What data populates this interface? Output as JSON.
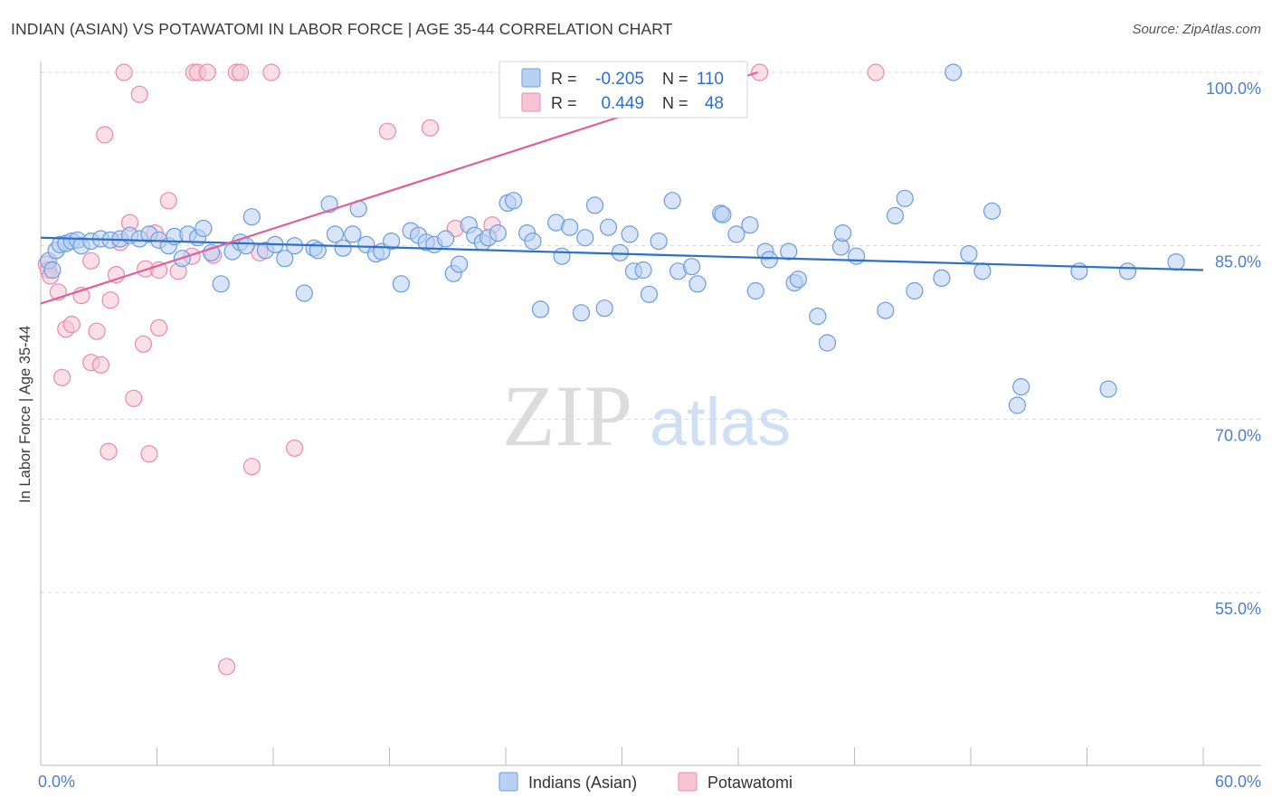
{
  "header": {
    "title": "INDIAN (ASIAN) VS POTAWATOMI IN LABOR FORCE | AGE 35-44 CORRELATION CHART",
    "source": "Source: ZipAtlas.com"
  },
  "watermark": {
    "zip": "ZIP",
    "atlas": "atlas"
  },
  "legend_stats": {
    "row1": {
      "r_label": "R =",
      "r_value": "-0.205",
      "n_label": "N =",
      "n_value": "110"
    },
    "row2": {
      "r_label": "R =",
      "r_value": "0.449",
      "n_label": "N =",
      "n_value": "48"
    }
  },
  "colors": {
    "blue_fill": "#b8d0f2",
    "blue_stroke": "#6a9ce0",
    "blue_line": "#2c6fcc",
    "pink_fill": "#f7c4d4",
    "pink_stroke": "#e98aaa",
    "pink_line": "#e0609a",
    "tick_text": "#4a7fd0",
    "grid": "#d8d8d8"
  },
  "chart_data": {
    "type": "scatter",
    "title": "INDIAN (ASIAN) VS POTAWATOMI IN LABOR FORCE | AGE 35-44 CORRELATION CHART",
    "xlabel": "",
    "ylabel": "In Labor Force | Age 35-44",
    "xlim": [
      0,
      60
    ],
    "ylim": [
      40,
      101.5
    ],
    "x_tick_labels": [
      "0.0%",
      "60.0%"
    ],
    "y_ticks": [
      55,
      70,
      85,
      100
    ],
    "y_tick_labels": [
      "55.0%",
      "70.0%",
      "85.0%",
      "100.0%"
    ],
    "legend_position": "bottom-center",
    "series": [
      {
        "name": "Indians (Asian)",
        "R": -0.205,
        "N": 110,
        "trend": [
          [
            0,
            85.7
          ],
          [
            60,
            82.9
          ]
        ],
        "points": [
          [
            0.4,
            83.7
          ],
          [
            0.6,
            82.9
          ],
          [
            0.8,
            84.6
          ],
          [
            1.0,
            85.1
          ],
          [
            1.3,
            85.2
          ],
          [
            1.6,
            85.4
          ],
          [
            1.9,
            85.5
          ],
          [
            2.1,
            85.0
          ],
          [
            2.6,
            85.4
          ],
          [
            3.1,
            85.6
          ],
          [
            3.6,
            85.5
          ],
          [
            4.1,
            85.6
          ],
          [
            4.6,
            85.9
          ],
          [
            5.1,
            85.6
          ],
          [
            5.6,
            86.0
          ],
          [
            6.1,
            85.5
          ],
          [
            6.6,
            85.0
          ],
          [
            6.9,
            85.8
          ],
          [
            7.3,
            83.9
          ],
          [
            7.6,
            86.0
          ],
          [
            8.1,
            85.7
          ],
          [
            8.4,
            86.5
          ],
          [
            8.8,
            84.4
          ],
          [
            9.3,
            81.7
          ],
          [
            9.9,
            84.5
          ],
          [
            10.3,
            85.3
          ],
          [
            10.6,
            85.0
          ],
          [
            10.9,
            87.5
          ],
          [
            11.6,
            84.6
          ],
          [
            12.1,
            85.1
          ],
          [
            12.6,
            83.9
          ],
          [
            13.1,
            85.0
          ],
          [
            13.6,
            80.9
          ],
          [
            14.1,
            84.8
          ],
          [
            14.3,
            84.6
          ],
          [
            14.9,
            88.6
          ],
          [
            15.2,
            86.0
          ],
          [
            15.6,
            84.8
          ],
          [
            16.1,
            86.0
          ],
          [
            16.4,
            88.2
          ],
          [
            16.8,
            85.1
          ],
          [
            17.3,
            84.3
          ],
          [
            17.6,
            84.5
          ],
          [
            18.1,
            85.4
          ],
          [
            18.6,
            81.7
          ],
          [
            19.1,
            86.3
          ],
          [
            19.5,
            85.9
          ],
          [
            19.9,
            85.3
          ],
          [
            20.3,
            85.1
          ],
          [
            20.9,
            85.6
          ],
          [
            21.3,
            82.6
          ],
          [
            21.6,
            83.4
          ],
          [
            22.1,
            86.8
          ],
          [
            22.4,
            85.9
          ],
          [
            22.8,
            85.3
          ],
          [
            23.1,
            85.7
          ],
          [
            23.6,
            86.1
          ],
          [
            24.1,
            88.7
          ],
          [
            24.4,
            88.9
          ],
          [
            25.1,
            86.1
          ],
          [
            25.4,
            85.4
          ],
          [
            25.8,
            79.5
          ],
          [
            26.6,
            87.0
          ],
          [
            26.9,
            84.1
          ],
          [
            27.3,
            86.6
          ],
          [
            27.9,
            79.2
          ],
          [
            28.1,
            85.7
          ],
          [
            28.6,
            88.5
          ],
          [
            29.1,
            79.6
          ],
          [
            29.3,
            86.6
          ],
          [
            29.9,
            84.4
          ],
          [
            30.4,
            86.0
          ],
          [
            30.6,
            82.8
          ],
          [
            31.1,
            82.9
          ],
          [
            31.4,
            80.8
          ],
          [
            31.9,
            85.4
          ],
          [
            32.6,
            88.9
          ],
          [
            32.9,
            82.8
          ],
          [
            33.6,
            83.2
          ],
          [
            33.9,
            81.7
          ],
          [
            35.1,
            87.8
          ],
          [
            35.2,
            87.7
          ],
          [
            35.9,
            86.0
          ],
          [
            36.6,
            86.8
          ],
          [
            36.9,
            81.1
          ],
          [
            37.4,
            84.5
          ],
          [
            37.6,
            83.8
          ],
          [
            38.6,
            84.5
          ],
          [
            38.9,
            81.8
          ],
          [
            39.1,
            82.1
          ],
          [
            40.1,
            78.9
          ],
          [
            40.6,
            76.6
          ],
          [
            41.3,
            84.9
          ],
          [
            41.4,
            86.1
          ],
          [
            42.1,
            84.1
          ],
          [
            43.6,
            79.4
          ],
          [
            44.1,
            87.6
          ],
          [
            44.6,
            89.1
          ],
          [
            45.1,
            81.1
          ],
          [
            46.5,
            82.2
          ],
          [
            47.1,
            100.0
          ],
          [
            47.9,
            84.3
          ],
          [
            48.6,
            82.8
          ],
          [
            49.1,
            88.0
          ],
          [
            50.4,
            71.2
          ],
          [
            50.6,
            72.8
          ],
          [
            53.6,
            82.8
          ],
          [
            55.1,
            72.6
          ],
          [
            56.1,
            82.8
          ],
          [
            58.6,
            83.6
          ]
        ]
      },
      {
        "name": "Potawatomi",
        "R": 0.449,
        "N": 48,
        "trend": [
          [
            0,
            80.0
          ],
          [
            37,
            100.0
          ]
        ],
        "points": [
          [
            0.3,
            83.4
          ],
          [
            0.4,
            82.9
          ],
          [
            0.5,
            82.4
          ],
          [
            0.9,
            81.0
          ],
          [
            1.1,
            73.6
          ],
          [
            1.3,
            77.8
          ],
          [
            1.6,
            78.2
          ],
          [
            2.1,
            80.7
          ],
          [
            2.6,
            83.7
          ],
          [
            2.6,
            74.9
          ],
          [
            2.9,
            77.6
          ],
          [
            3.1,
            74.7
          ],
          [
            3.3,
            94.6
          ],
          [
            3.5,
            67.2
          ],
          [
            3.6,
            80.3
          ],
          [
            3.9,
            82.5
          ],
          [
            4.1,
            85.3
          ],
          [
            4.3,
            100.0
          ],
          [
            4.6,
            87.0
          ],
          [
            4.8,
            71.8
          ],
          [
            5.1,
            98.1
          ],
          [
            5.3,
            76.5
          ],
          [
            5.4,
            83.0
          ],
          [
            5.6,
            67.0
          ],
          [
            5.9,
            86.1
          ],
          [
            6.1,
            82.9
          ],
          [
            6.1,
            77.9
          ],
          [
            6.6,
            88.9
          ],
          [
            7.1,
            82.8
          ],
          [
            7.8,
            84.1
          ],
          [
            7.9,
            100.0
          ],
          [
            8.1,
            100.0
          ],
          [
            8.6,
            100.0
          ],
          [
            8.9,
            84.2
          ],
          [
            9.6,
            48.6
          ],
          [
            10.1,
            100.0
          ],
          [
            10.3,
            100.0
          ],
          [
            10.9,
            65.9
          ],
          [
            11.3,
            84.4
          ],
          [
            11.9,
            100.0
          ],
          [
            13.1,
            67.5
          ],
          [
            17.9,
            94.9
          ],
          [
            20.1,
            95.2
          ],
          [
            21.4,
            86.5
          ],
          [
            23.3,
            86.8
          ],
          [
            32.1,
            100.0
          ],
          [
            37.1,
            100.0
          ],
          [
            43.1,
            100.0
          ]
        ]
      }
    ]
  }
}
